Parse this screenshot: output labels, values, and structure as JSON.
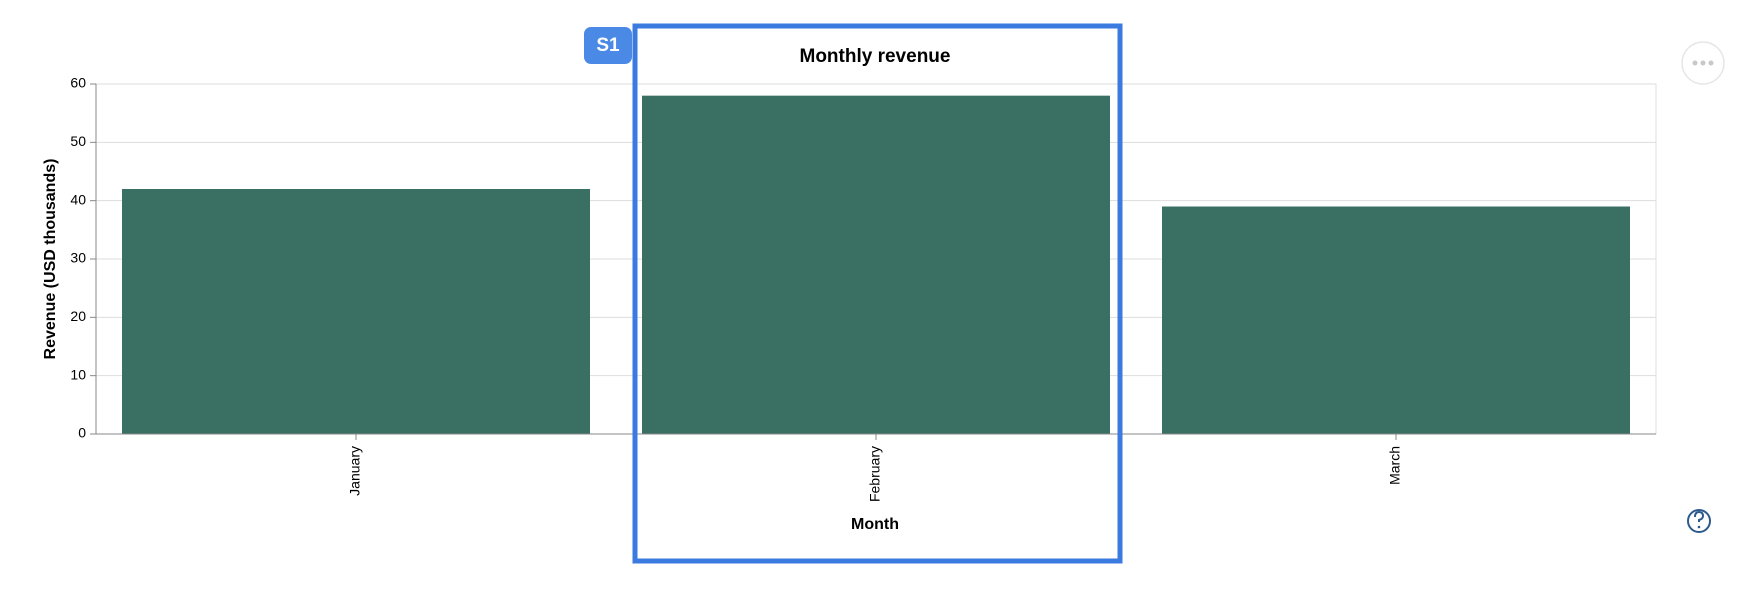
{
  "chart_data": {
    "type": "bar",
    "title": "Monthly revenue",
    "annotation": "S1",
    "x_label": "Month",
    "y_label": "Revenue (USD thousands)",
    "categories": [
      "January",
      "February",
      "March"
    ],
    "values": [
      42,
      58,
      39
    ],
    "color": "#3a7063",
    "ylim": [
      0,
      60
    ],
    "yticks": [
      0,
      10,
      20,
      30,
      40,
      50,
      60
    ],
    "grid": true
  }
}
